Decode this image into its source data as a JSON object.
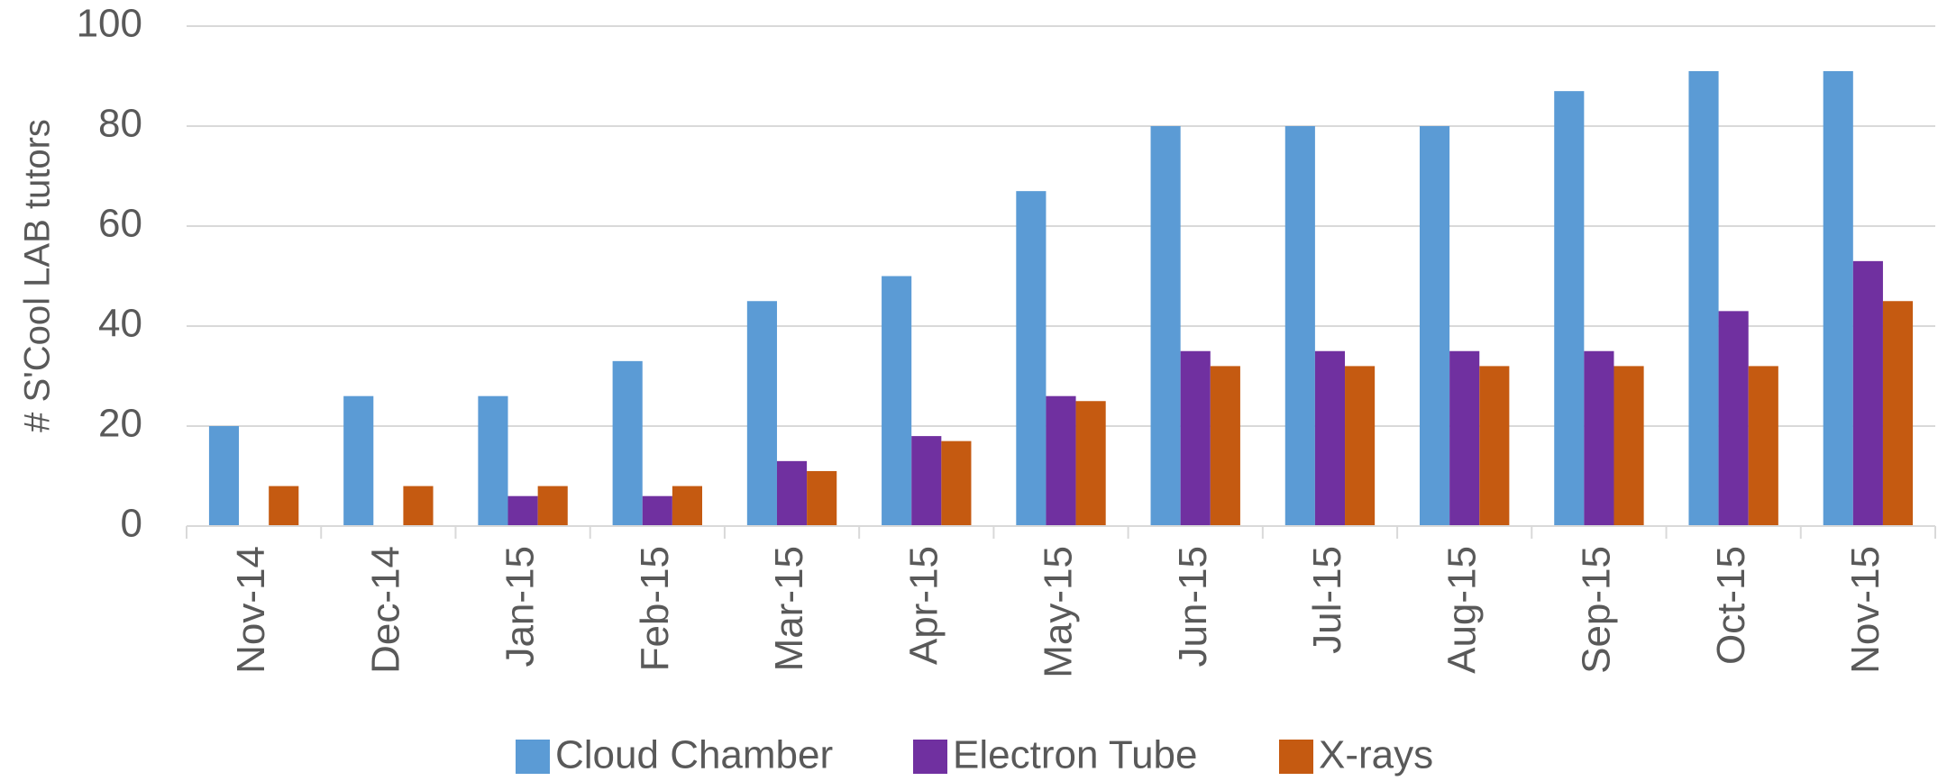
{
  "chart_data": {
    "type": "bar",
    "y_label": "# S'Cool LAB tutors",
    "categories": [
      "Nov-14",
      "Dec-14",
      "Jan-15",
      "Feb-15",
      "Mar-15",
      "Apr-15",
      "May-15",
      "Jun-15",
      "Jul-15",
      "Aug-15",
      "Sep-15",
      "Oct-15",
      "Nov-15"
    ],
    "series": [
      {
        "name": "Cloud Chamber",
        "color": "#5b9bd5",
        "values": [
          20,
          26,
          26,
          33,
          45,
          50,
          67,
          80,
          80,
          80,
          87,
          91,
          91
        ]
      },
      {
        "name": "Electron Tube",
        "color": "#7030a0",
        "values": [
          null,
          null,
          6,
          6,
          13,
          18,
          26,
          35,
          35,
          35,
          35,
          43,
          53
        ]
      },
      {
        "name": "X-rays",
        "color": "#c55a11",
        "values": [
          8,
          8,
          8,
          8,
          11,
          17,
          25,
          32,
          32,
          32,
          32,
          32,
          45
        ]
      }
    ],
    "ylim": [
      0,
      100
    ],
    "yticks": [
      0,
      20,
      40,
      60,
      80,
      100
    ],
    "grid": true,
    "legend": "bottom"
  }
}
